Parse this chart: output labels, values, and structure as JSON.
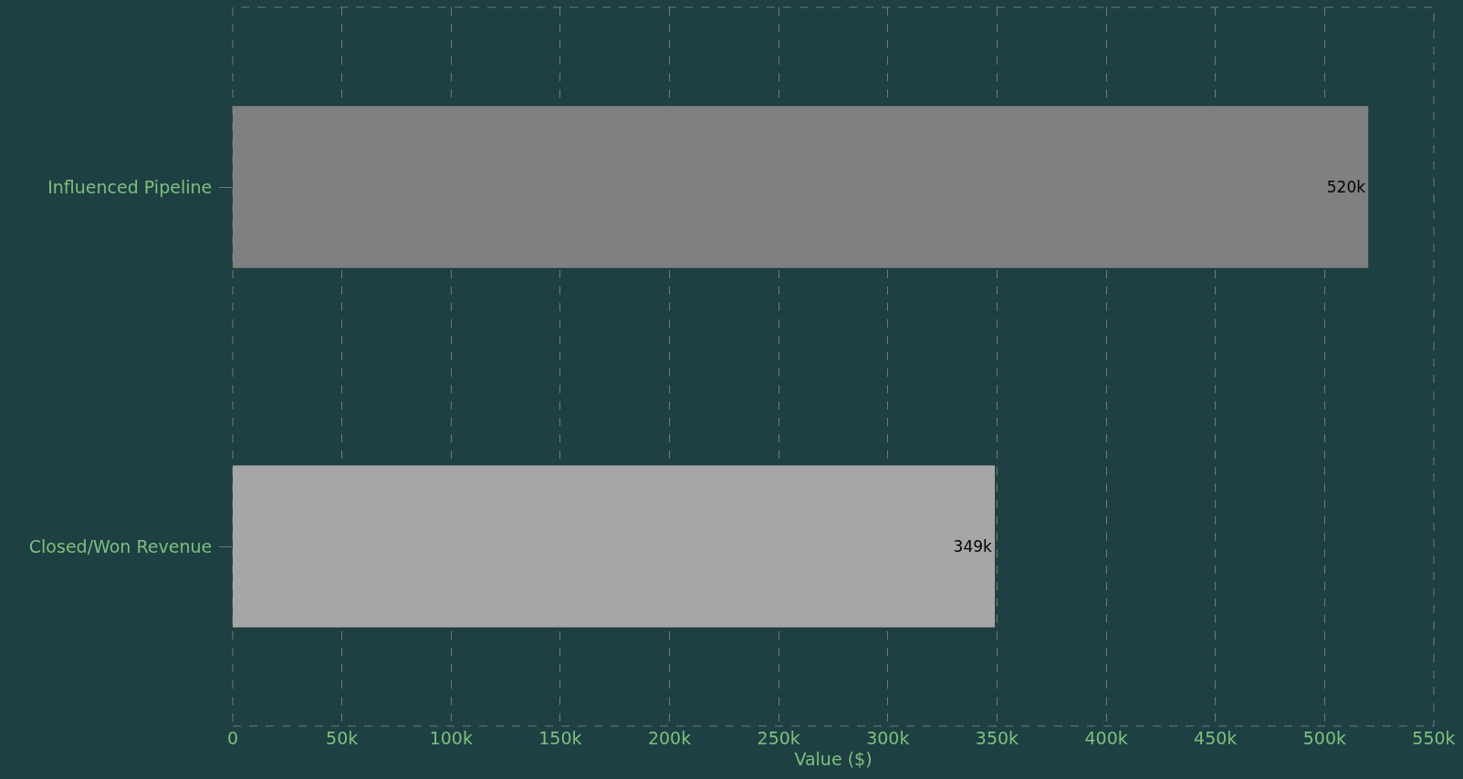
{
  "chart_data": {
    "type": "bar",
    "orientation": "horizontal",
    "xlabel": "Value ($)",
    "categories": [
      "Influenced Pipeline",
      "Closed/Won Revenue"
    ],
    "values": [
      520000,
      349000
    ],
    "colors": [
      "#808080",
      "#a6a6a6"
    ],
    "value_labels": [
      "520k",
      "349k"
    ],
    "xlim": [
      0,
      550000
    ],
    "xticks": [
      0,
      {
        "value": 50000,
        "label": "50k"
      },
      {
        "value": 100000,
        "label": "100k"
      },
      {
        "value": 150000,
        "label": "150k"
      },
      {
        "value": 200000,
        "label": "200k"
      },
      {
        "value": 250000,
        "label": "250k"
      },
      {
        "value": 300000,
        "label": "300k"
      },
      {
        "value": 350000,
        "label": "350k"
      },
      {
        "value": 400000,
        "label": "400k"
      },
      {
        "value": 450000,
        "label": "450k"
      },
      {
        "value": 500000,
        "label": "500k"
      },
      {
        "value": 550000,
        "label": "550k"
      }
    ],
    "grid": "x"
  }
}
